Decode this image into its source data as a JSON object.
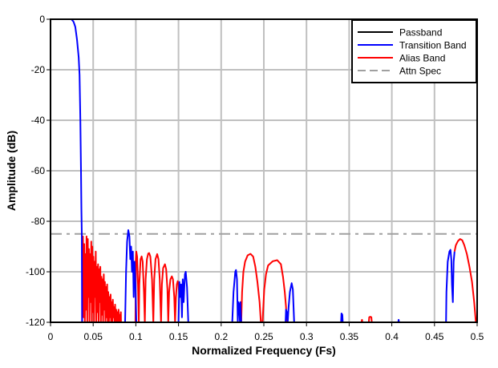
{
  "chart_data": {
    "type": "line",
    "title": "",
    "xlabel": "Normalized Frequency (Fs)",
    "ylabel": "Amplitude (dB)",
    "xlim": [
      0,
      0.5
    ],
    "ylim": [
      -120,
      0
    ],
    "x_ticks": [
      0,
      0.05,
      0.1,
      0.15,
      0.2,
      0.25,
      0.3,
      0.35,
      0.4,
      0.45,
      0.5
    ],
    "x_tick_labels": [
      "0",
      "0.05",
      "0.1",
      "0.15",
      "0.2",
      "0.25",
      "0.3",
      "0.35",
      "0.4",
      "0.45",
      "0.5"
    ],
    "y_ticks": [
      0,
      -20,
      -40,
      -60,
      -80,
      -100,
      -120
    ],
    "y_tick_labels": [
      "0",
      "-20",
      "-40",
      "-60",
      "-80",
      "-100",
      "-120"
    ],
    "grid": true,
    "legend_position": "top-right",
    "series": [
      {
        "name": "Passband",
        "color": "#000000",
        "style": "solid",
        "segments": [
          [
            [
              0,
              0
            ],
            [
              0.0245,
              0
            ]
          ]
        ]
      },
      {
        "name": "Transition Band",
        "color": "#0000ff",
        "style": "solid",
        "segments": [
          [
            [
              0.0245,
              0
            ],
            [
              0.027,
              -1
            ],
            [
              0.029,
              -3
            ],
            [
              0.031,
              -8
            ],
            [
              0.033,
              -15
            ],
            [
              0.034,
              -22
            ],
            [
              0.035,
              -40
            ],
            [
              0.0357,
              -60
            ],
            [
              0.0362,
              -75
            ],
            [
              0.0367,
              -85
            ],
            [
              0.037,
              -120
            ]
          ],
          [
            [
              0.0874,
              -120
            ],
            [
              0.0885,
              -100
            ],
            [
              0.0898,
              -88
            ],
            [
              0.0912,
              -83.5
            ],
            [
              0.0925,
              -86
            ],
            [
              0.0935,
              -95
            ],
            [
              0.0945,
              -90
            ],
            [
              0.0955,
              -100
            ],
            [
              0.0965,
              -92
            ],
            [
              0.0975,
              -110
            ],
            [
              0.0985,
              -96
            ],
            [
              0.0995,
              -105
            ],
            [
              0.1006,
              -120
            ]
          ],
          [
            [
              0.15,
              -120
            ],
            [
              0.151,
              -104
            ],
            [
              0.152,
              -110
            ],
            [
              0.153,
              -105
            ],
            [
              0.154,
              -118
            ],
            [
              0.155,
              -103
            ],
            [
              0.156,
              -112
            ],
            [
              0.1575,
              -101
            ],
            [
              0.1585,
              -100
            ],
            [
              0.16,
              -106
            ],
            [
              0.1615,
              -120
            ]
          ],
          [
            [
              0.213,
              -120
            ],
            [
              0.2145,
              -108
            ],
            [
              0.2165,
              -100
            ],
            [
              0.2174,
              -99.3
            ],
            [
              0.2185,
              -103
            ],
            [
              0.2195,
              -120
            ],
            [
              0.22,
              -112
            ],
            [
              0.221,
              -113
            ],
            [
              0.222,
              -120
            ],
            [
              0.2225,
              -112
            ],
            [
              0.2235,
              -120
            ]
          ],
          [
            [
              0.2755,
              -120
            ],
            [
              0.276,
              -115
            ],
            [
              0.277,
              -116
            ],
            [
              0.278,
              -120
            ],
            [
              0.279,
              -114
            ],
            [
              0.2805,
              -108
            ],
            [
              0.2826,
              -104.5
            ],
            [
              0.284,
              -107
            ],
            [
              0.2855,
              -120
            ]
          ],
          [
            [
              0.3405,
              -120
            ],
            [
              0.341,
              -116.5
            ],
            [
              0.342,
              -117
            ],
            [
              0.3425,
              -120
            ]
          ],
          [
            [
              0.4075,
              -120
            ],
            [
              0.408,
              -119
            ],
            [
              0.4085,
              -120
            ]
          ],
          [
            [
              0.4635,
              -120
            ],
            [
              0.464,
              -108
            ],
            [
              0.4655,
              -96
            ],
            [
              0.4675,
              -92
            ],
            [
              0.4687,
              -91.3
            ],
            [
              0.4697,
              -95
            ],
            [
              0.4705,
              -105
            ],
            [
              0.4715,
              -112
            ],
            [
              0.4725,
              -96
            ],
            [
              0.4735,
              -92
            ]
          ]
        ]
      },
      {
        "name": "Alias Band",
        "color": "#ff0000",
        "style": "solid",
        "segments": [
          [
            [
              0.037,
              -120
            ],
            [
              0.0372,
              -88
            ],
            [
              0.038,
              -86
            ],
            [
              0.0388,
              -118
            ],
            [
              0.0395,
              -89
            ],
            [
              0.0402,
              -120
            ],
            [
              0.041,
              -93
            ],
            [
              0.0416,
              -115
            ],
            [
              0.0422,
              -86
            ],
            [
              0.043,
              -120
            ],
            [
              0.0437,
              -87
            ],
            [
              0.0444,
              -110
            ],
            [
              0.045,
              -91
            ],
            [
              0.0457,
              -120
            ],
            [
              0.0463,
              -93
            ],
            [
              0.047,
              -112
            ],
            [
              0.0477,
              -88
            ],
            [
              0.0484,
              -120
            ],
            [
              0.049,
              -90
            ],
            [
              0.0497,
              -116
            ],
            [
              0.0503,
              -94
            ],
            [
              0.051,
              -120
            ],
            [
              0.0517,
              -96
            ],
            [
              0.0524,
              -110
            ],
            [
              0.053,
              -92
            ],
            [
              0.0537,
              -120
            ],
            [
              0.0544,
              -98
            ],
            [
              0.055,
              -116
            ],
            [
              0.0557,
              -97
            ],
            [
              0.0564,
              -120
            ],
            [
              0.057,
              -99
            ],
            [
              0.0577,
              -112
            ],
            [
              0.0584,
              -98
            ],
            [
              0.059,
              -120
            ],
            [
              0.0597,
              -102
            ],
            [
              0.0604,
              -117
            ],
            [
              0.061,
              -103
            ],
            [
              0.0617,
              -120
            ],
            [
              0.0624,
              -101
            ],
            [
              0.063,
              -115
            ],
            [
              0.0637,
              -104
            ],
            [
              0.0644,
              -120
            ],
            [
              0.065,
              -106
            ],
            [
              0.0657,
              -118
            ],
            [
              0.0664,
              -105
            ],
            [
              0.067,
              -120
            ],
            [
              0.0677,
              -108
            ],
            [
              0.0684,
              -120
            ],
            [
              0.069,
              -110
            ],
            [
              0.0697,
              -118
            ],
            [
              0.0704,
              -109
            ],
            [
              0.071,
              -120
            ],
            [
              0.0717,
              -112
            ],
            [
              0.0724,
              -120
            ],
            [
              0.073,
              -111
            ],
            [
              0.0737,
              -118
            ],
            [
              0.0744,
              -114
            ],
            [
              0.075,
              -120
            ],
            [
              0.0757,
              -113
            ],
            [
              0.0764,
              -120
            ],
            [
              0.077,
              -115
            ],
            [
              0.0777,
              -120
            ],
            [
              0.0784,
              -116
            ],
            [
              0.079,
              -120
            ],
            [
              0.0797,
              -115
            ],
            [
              0.0804,
              -120
            ],
            [
              0.081,
              -117
            ],
            [
              0.0817,
              -120
            ],
            [
              0.0824,
              -116
            ],
            [
              0.0826,
              -120
            ]
          ],
          [
            [
              0.0995,
              -120
            ],
            [
              0.1,
              -95
            ],
            [
              0.1006,
              -92
            ],
            [
              0.1015,
              -94
            ],
            [
              0.1025,
              -105
            ],
            [
              0.1035,
              -120
            ],
            [
              0.104,
              -105
            ],
            [
              0.1055,
              -95
            ],
            [
              0.1068,
              -93.9
            ],
            [
              0.108,
              -96
            ],
            [
              0.1095,
              -108
            ],
            [
              0.1105,
              -120
            ],
            [
              0.1115,
              -103
            ],
            [
              0.113,
              -95
            ],
            [
              0.1145,
              -92.8
            ],
            [
              0.1156,
              -92.6
            ],
            [
              0.117,
              -94
            ],
            [
              0.119,
              -103
            ],
            [
              0.1205,
              -120
            ],
            [
              0.1215,
              -103
            ],
            [
              0.123,
              -95
            ],
            [
              0.125,
              -93
            ],
            [
              0.1265,
              -95
            ],
            [
              0.128,
              -103
            ],
            [
              0.1295,
              -120
            ],
            [
              0.1305,
              -105
            ],
            [
              0.132,
              -98.5
            ],
            [
              0.1341,
              -97
            ],
            [
              0.1355,
              -99
            ],
            [
              0.137,
              -107
            ],
            [
              0.138,
              -120
            ],
            [
              0.139,
              -108
            ],
            [
              0.1405,
              -103
            ],
            [
              0.1422,
              -101.8
            ],
            [
              0.1435,
              -103
            ],
            [
              0.145,
              -110
            ],
            [
              0.146,
              -120
            ],
            [
              0.147,
              -110
            ],
            [
              0.148,
              -105
            ],
            [
              0.1491,
              -103.7
            ],
            [
              0.15,
              -105
            ],
            [
              0.151,
              -110
            ]
          ],
          [
            [
              0.2235,
              -120
            ],
            [
              0.2245,
              -108
            ],
            [
              0.226,
              -100
            ],
            [
              0.228,
              -96
            ],
            [
              0.231,
              -93.5
            ],
            [
              0.2343,
              -92.9
            ],
            [
              0.2375,
              -94
            ],
            [
              0.24,
              -98
            ],
            [
              0.2425,
              -104
            ],
            [
              0.245,
              -112
            ],
            [
              0.2465,
              -120
            ]
          ],
          [
            [
              0.2485,
              -120
            ],
            [
              0.2505,
              -107
            ],
            [
              0.2525,
              -101
            ],
            [
              0.255,
              -97.5
            ],
            [
              0.2605,
              -95.8
            ],
            [
              0.2657,
              -95.4
            ],
            [
              0.27,
              -97
            ],
            [
              0.2725,
              -102
            ],
            [
              0.2745,
              -108
            ],
            [
              0.276,
              -114
            ],
            [
              0.2765,
              -120
            ]
          ],
          [
            [
              0.3645,
              -120
            ],
            [
              0.365,
              -119
            ],
            [
              0.3655,
              -120
            ]
          ],
          [
            [
              0.373,
              -120
            ],
            [
              0.3735,
              -118
            ],
            [
              0.3747,
              -117.8
            ],
            [
              0.376,
              -118
            ],
            [
              0.3765,
              -120
            ]
          ],
          [
            [
              0.4735,
              -92
            ],
            [
              0.475,
              -89.5
            ],
            [
              0.4775,
              -87.8
            ],
            [
              0.48,
              -87
            ],
            [
              0.4825,
              -87.5
            ],
            [
              0.485,
              -89.5
            ],
            [
              0.488,
              -93
            ],
            [
              0.491,
              -98
            ],
            [
              0.494,
              -104
            ],
            [
              0.4965,
              -112
            ],
            [
              0.4985,
              -120
            ]
          ]
        ]
      },
      {
        "name": "Attn Spec",
        "color": "#a0a0a0",
        "style": "dash-dot",
        "segments": [
          [
            [
              0,
              -85
            ],
            [
              0.5,
              -85
            ]
          ]
        ]
      }
    ]
  }
}
